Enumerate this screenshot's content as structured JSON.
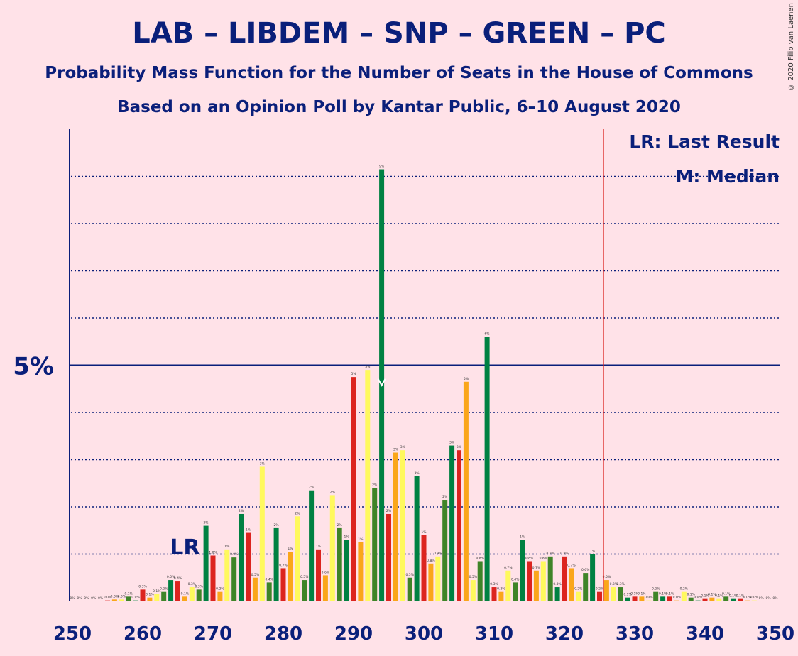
{
  "header": {
    "title": "LAB – LIBDEM – SNP – GREEN – PC",
    "subtitle1": "Probability Mass Function for the Number of Seats in the House of Commons",
    "subtitle2": "Based on an Opinion Poll by Kantar Public, 6–10 August 2020",
    "copyright": "© 2020 Filip van Laenen"
  },
  "legend": {
    "lr": "LR: Last Result",
    "m": "M: Median"
  },
  "markers": {
    "lr_label": "LR",
    "lr_seat": 266,
    "median_seat": 294,
    "majority_seat": 326
  },
  "colors": {
    "background": "#FFE2E8",
    "text": "#0A1F7A",
    "lab": "#DC241F",
    "libdem": "#FAA61A",
    "snp": "#FFF95D",
    "green": "#3F8428",
    "pc": "#008142",
    "majority_line": "#DC241F"
  },
  "chart_data": {
    "type": "bar",
    "x_range": [
      250,
      350
    ],
    "y_range": [
      0,
      10
    ],
    "y_tick_label": "5%",
    "y_tick_value": 5,
    "x_ticks": [
      "250",
      "260",
      "270",
      "280",
      "290",
      "300",
      "310",
      "320",
      "330",
      "340",
      "350"
    ],
    "x": [
      250,
      251,
      252,
      253,
      254,
      255,
      256,
      257,
      258,
      259,
      260,
      261,
      262,
      263,
      264,
      265,
      266,
      267,
      268,
      269,
      270,
      271,
      272,
      273,
      274,
      275,
      276,
      277,
      278,
      279,
      280,
      281,
      282,
      283,
      284,
      285,
      286,
      287,
      288,
      289,
      290,
      291,
      292,
      293,
      294,
      295,
      296,
      297,
      298,
      299,
      300,
      301,
      302,
      303,
      304,
      305,
      306,
      307,
      308,
      309,
      310,
      311,
      312,
      313,
      314,
      315,
      316,
      317,
      318,
      319,
      320,
      321,
      322,
      323,
      324,
      325,
      326,
      327,
      328,
      329,
      330,
      331,
      332,
      333,
      334,
      335,
      336,
      337,
      338,
      339,
      340,
      341,
      342,
      343,
      344,
      345,
      346,
      347,
      348,
      349,
      350
    ],
    "values": [
      0,
      0,
      0,
      0,
      0,
      0.02,
      0.04,
      0.04,
      0.1,
      0.02,
      0.25,
      0.08,
      0.15,
      0.2,
      0.45,
      0.42,
      0.1,
      0.3,
      0.25,
      1.6,
      0.97,
      0.2,
      1.1,
      0.93,
      1.85,
      1.45,
      0.5,
      2.85,
      0.4,
      1.55,
      0.7,
      1.05,
      1.8,
      0.45,
      2.35,
      1.1,
      0.55,
      2.25,
      1.55,
      1.3,
      4.75,
      1.25,
      4.9,
      2.4,
      9.15,
      1.85,
      3.15,
      3.2,
      0.5,
      2.65,
      1.4,
      0.8,
      0.95,
      2.15,
      3.3,
      3.2,
      4.65,
      0.45,
      0.85,
      5.6,
      0.3,
      0.2,
      0.65,
      0.4,
      1.3,
      0.85,
      0.65,
      0.85,
      0.95,
      0.3,
      0.95,
      0.7,
      0.2,
      0.6,
      1.0,
      0.2,
      0.45,
      0.3,
      0.3,
      0.08,
      0.1,
      0.1,
      0.02,
      0.2,
      0.1,
      0.1,
      0.02,
      0.2,
      0.08,
      0.02,
      0.05,
      0.08,
      0.05,
      0.1,
      0.05,
      0.05,
      0.02,
      0.02,
      0,
      0,
      0
    ],
    "series_colors": [
      "lab",
      "libdem",
      "snp",
      "green",
      "pc"
    ]
  }
}
